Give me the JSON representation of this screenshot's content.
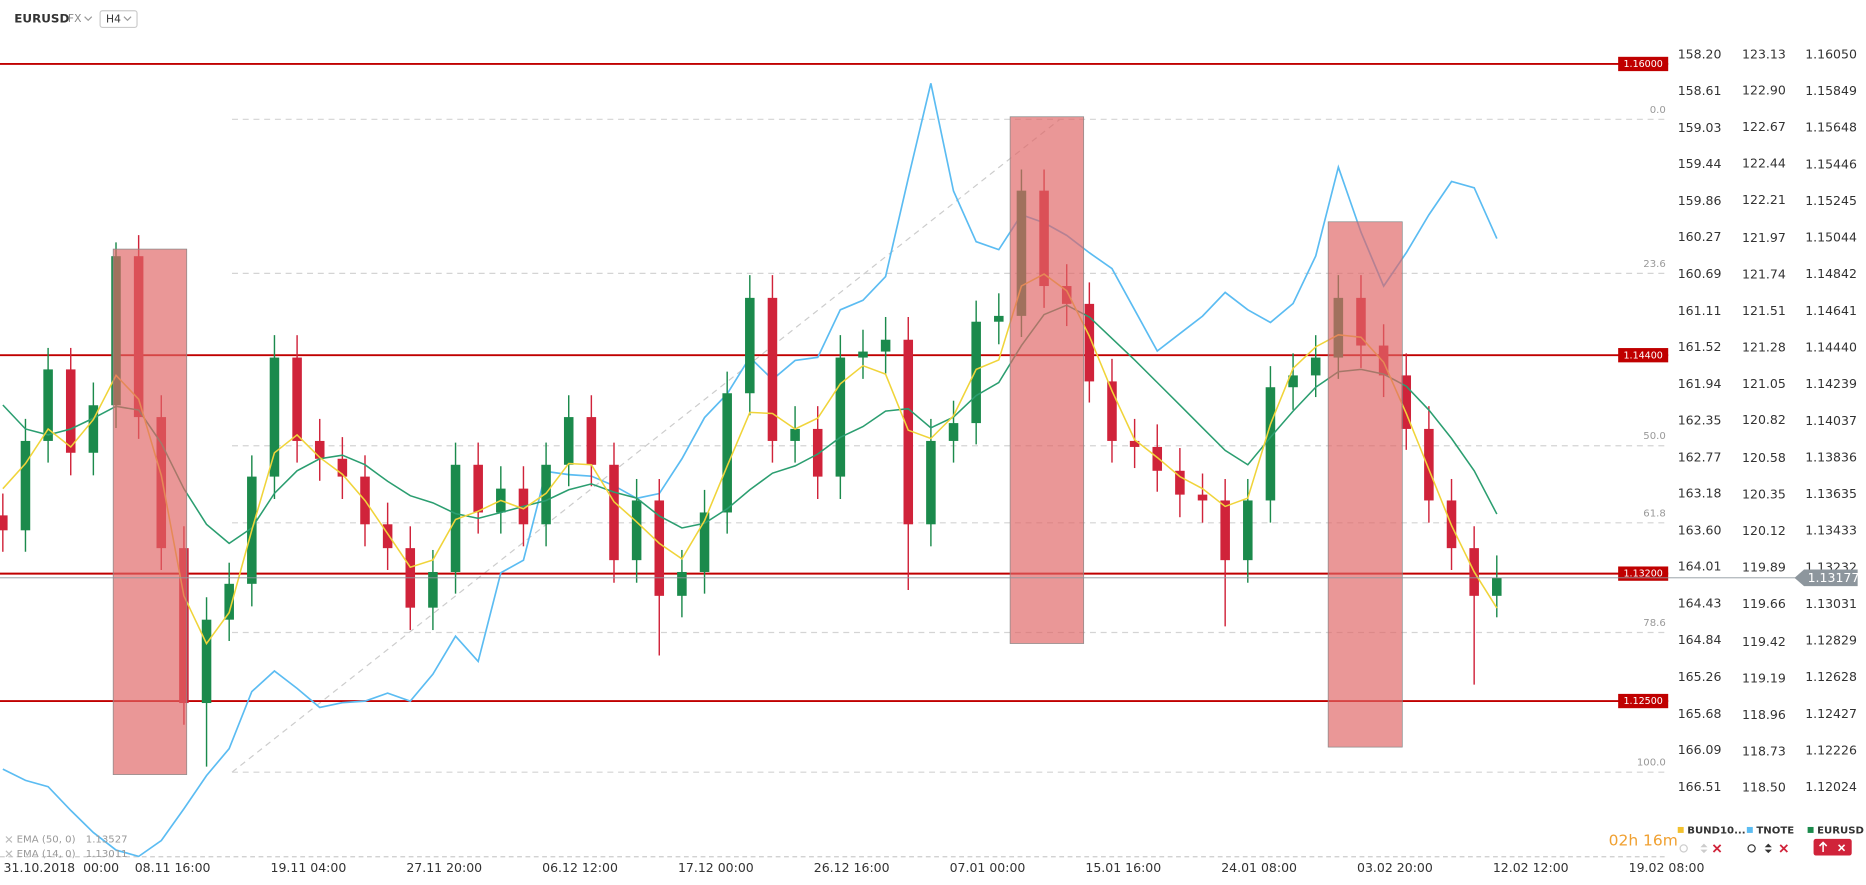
{
  "chart_data": {
    "type": "candlestick",
    "symbol": "EURUSD",
    "market": "FX",
    "timeframe": "H4",
    "x": [
      -6,
      -2,
      2,
      6,
      10,
      14,
      18,
      22,
      26,
      30,
      34,
      38,
      42,
      46,
      50,
      54,
      58,
      62,
      66,
      70,
      74,
      78,
      82,
      86,
      90,
      94,
      98,
      102,
      106,
      110,
      114,
      118,
      122,
      126,
      130,
      134,
      138,
      142,
      146,
      150,
      154,
      158,
      162,
      166,
      170,
      174,
      178,
      182,
      186,
      190,
      194,
      198,
      202,
      206,
      210,
      214,
      218,
      222,
      226,
      230,
      234,
      238,
      242,
      246,
      250,
      254,
      258
    ],
    "xlim": [
      -6.5,
      288.5
    ],
    "xticks": [
      {
        "value": 0,
        "label": "31.10.2018  00:00"
      },
      {
        "value": 24,
        "label": "08.11 16:00"
      },
      {
        "value": 48,
        "label": "19.11 04:00"
      },
      {
        "value": 72,
        "label": "27.11 20:00"
      },
      {
        "value": 96,
        "label": "06.12 12:00"
      },
      {
        "value": 120,
        "label": "17.12 00:00"
      },
      {
        "value": 144,
        "label": "26.12 16:00"
      },
      {
        "value": 168,
        "label": "07.01 00:00"
      },
      {
        "value": 192,
        "label": "15.01 16:00"
      },
      {
        "value": 216,
        "label": "24.01 08:00"
      },
      {
        "value": 240,
        "label": "03.02 20:00"
      },
      {
        "value": 264,
        "label": "12.02 12:00"
      },
      {
        "value": 288,
        "label": "19.02 08:00"
      }
    ],
    "ylim": [
      1.11638,
      1.16155
    ],
    "yticks": [
      {
        "value": 1.1605,
        "label": "1.16050"
      },
      1.15849,
      1.15648,
      1.15446,
      1.15245,
      1.15044,
      1.14842,
      1.14641,
      {
        "value": 1.1444,
        "label": "1.14440"
      },
      1.14239,
      1.14037,
      1.13836,
      1.13635,
      1.13433,
      1.13232,
      1.13031,
      1.12829,
      1.12628,
      1.12427,
      1.12226,
      1.12024
    ],
    "y2lim": [
      118.06,
      123.25
    ],
    "y2ticks": [
      123.13,
      {
        "value": 122.9,
        "label": "122.90"
      },
      122.67,
      122.44,
      122.21,
      121.97,
      121.74,
      121.51,
      121.28,
      121.05,
      120.82,
      120.58,
      120.35,
      120.12,
      119.89,
      119.66,
      119.42,
      119.19,
      118.96,
      118.73,
      {
        "value": 118.5,
        "label": "118.50"
      }
    ],
    "y3lim": [
      167.31,
      157.98
    ],
    "y3ticks": [
      {
        "value": 158.2,
        "label": "158.20"
      },
      158.61,
      159.03,
      159.44,
      159.86,
      160.27,
      160.69,
      161.11,
      161.52,
      161.94,
      162.35,
      162.77,
      163.18,
      {
        "value": 163.6,
        "label": "163.60"
      },
      164.01,
      164.43,
      164.84,
      165.26,
      165.68,
      166.09,
      166.51
    ],
    "y3_name": "BUND10...",
    "y3_color": "#f2c12e",
    "ohlc": {
      "name": "EURUSD",
      "up_color": "#1b8a4c",
      "down_color": "#d0233a",
      "open": [
        1.1352,
        1.13438,
        1.13929,
        1.14322,
        1.13864,
        1.14125,
        1.14944,
        1.1406,
        1.1334,
        1.12489,
        1.12947,
        1.13144,
        1.13733,
        1.14387,
        1.13929,
        1.13831,
        1.13733,
        1.13471,
        1.1334,
        1.13013,
        1.13209,
        1.13798,
        1.13536,
        1.13667,
        1.13471,
        1.13798,
        1.1406,
        1.13798,
        1.13274,
        1.13602,
        1.13078,
        1.13209,
        1.13536,
        1.14191,
        1.14715,
        1.13929,
        1.13995,
        1.13733,
        1.14387,
        1.1442,
        1.14485,
        1.13471,
        1.13929,
        1.14027,
        1.14584,
        1.14616,
        1.15304,
        1.1478,
        1.14682,
        1.14256,
        1.13929,
        1.13896,
        1.13765,
        1.13634,
        1.13602,
        1.13274,
        1.13602,
        1.14224,
        1.14289,
        1.14387,
        1.14715,
        1.14453,
        1.14289,
        1.13995,
        1.13602,
        1.1334,
        1.13078
      ],
      "high": [
        1.1364,
        1.1405,
        1.1444,
        1.1444,
        1.1425,
        1.1502,
        1.1506,
        1.1418,
        1.1346,
        1.1307,
        1.1326,
        1.1385,
        1.1451,
        1.1451,
        1.1405,
        1.1395,
        1.1385,
        1.1359,
        1.1346,
        1.1333,
        1.1392,
        1.1392,
        1.1379,
        1.1379,
        1.1392,
        1.1418,
        1.1418,
        1.1392,
        1.1372,
        1.1372,
        1.1333,
        1.1366,
        1.1431,
        1.1484,
        1.1484,
        1.1412,
        1.1412,
        1.1451,
        1.1454,
        1.1461,
        1.1461,
        1.1405,
        1.1415,
        1.147,
        1.1474,
        1.1542,
        1.1542,
        1.149,
        1.148,
        1.1438,
        1.1405,
        1.1402,
        1.1389,
        1.1375,
        1.1372,
        1.1372,
        1.1434,
        1.1441,
        1.1451,
        1.1484,
        1.1484,
        1.1457,
        1.1441,
        1.1412,
        1.1372,
        1.1346,
        1.133
      ],
      "low": [
        1.1332,
        1.1332,
        1.1381,
        1.1374,
        1.1374,
        1.14,
        1.1394,
        1.1322,
        1.1237,
        1.1214,
        1.1283,
        1.1302,
        1.1361,
        1.1381,
        1.1371,
        1.1361,
        1.1335,
        1.1322,
        1.1289,
        1.1289,
        1.1309,
        1.1342,
        1.1342,
        1.1335,
        1.1335,
        1.1368,
        1.1368,
        1.1315,
        1.1315,
        1.1275,
        1.1296,
        1.1309,
        1.1342,
        1.1407,
        1.1381,
        1.1381,
        1.1361,
        1.1361,
        1.1427,
        1.143,
        1.1311,
        1.1335,
        1.1381,
        1.1391,
        1.1446,
        1.145,
        1.1466,
        1.1456,
        1.1414,
        1.1381,
        1.1378,
        1.1365,
        1.1351,
        1.1348,
        1.1291,
        1.1315,
        1.1348,
        1.141,
        1.1417,
        1.1427,
        1.1433,
        1.1417,
        1.1388,
        1.1348,
        1.1322,
        1.1259,
        1.1296
      ],
      "close": [
        1.13438,
        1.13929,
        1.14322,
        1.13864,
        1.14125,
        1.14944,
        1.1406,
        1.1334,
        1.12489,
        1.12947,
        1.13144,
        1.13733,
        1.14387,
        1.13929,
        1.13831,
        1.13733,
        1.13471,
        1.1334,
        1.13013,
        1.13209,
        1.13798,
        1.13536,
        1.13667,
        1.13471,
        1.13798,
        1.1406,
        1.13798,
        1.13274,
        1.13602,
        1.13078,
        1.13209,
        1.13536,
        1.14191,
        1.14715,
        1.13929,
        1.13995,
        1.13733,
        1.14387,
        1.1442,
        1.14485,
        1.13471,
        1.13929,
        1.14027,
        1.14584,
        1.14616,
        1.15304,
        1.1478,
        1.14682,
        1.14256,
        1.13929,
        1.13896,
        1.13765,
        1.13634,
        1.13602,
        1.13274,
        1.13602,
        1.14224,
        1.14289,
        1.14387,
        1.14715,
        1.14453,
        1.14289,
        1.13995,
        1.13602,
        1.1334,
        1.13078,
        1.13177
      ]
    },
    "series": [
      {
        "name": "TNOTE",
        "axis": "y2",
        "color": "#5bbcf2",
        "values": [
          118.62,
          118.55,
          118.51,
          118.36,
          118.22,
          118.11,
          118.07,
          118.17,
          118.37,
          118.58,
          118.75,
          119.11,
          119.24,
          119.13,
          119.01,
          119.04,
          119.05,
          119.1,
          119.05,
          119.22,
          119.46,
          119.3,
          119.86,
          119.94,
          120.5,
          120.48,
          120.47,
          120.41,
          120.33,
          120.36,
          120.58,
          120.84,
          120.99,
          121.22,
          121.08,
          121.2,
          121.22,
          121.52,
          121.58,
          121.73,
          122.35,
          122.95,
          122.27,
          121.95,
          121.9,
          122.12,
          122.07,
          121.99,
          121.88,
          121.78,
          121.52,
          121.26,
          121.37,
          121.48,
          121.63,
          121.52,
          121.44,
          121.56,
          121.86,
          122.42,
          122.01,
          121.67,
          121.88,
          122.12,
          122.33,
          122.29,
          121.97
        ]
      },
      {
        "name": "EMA (50, 0)",
        "color": "#2b9e70",
        "values": [
          1.14126,
          1.13995,
          1.13962,
          1.13995,
          1.14054,
          1.14119,
          1.14099,
          1.13916,
          1.13667,
          1.13471,
          1.13366,
          1.13451,
          1.13641,
          1.13765,
          1.13831,
          1.13851,
          1.13798,
          1.13707,
          1.13628,
          1.13589,
          1.1353,
          1.13504,
          1.13536,
          1.13569,
          1.13602,
          1.13661,
          1.13693,
          1.13648,
          1.13615,
          1.13517,
          1.13451,
          1.13477,
          1.13556,
          1.13661,
          1.13752,
          1.13792,
          1.13857,
          1.13949,
          1.14008,
          1.14093,
          1.14106,
          1.14001,
          1.1406,
          1.14178,
          1.1425,
          1.14453,
          1.14623,
          1.14675,
          1.1461,
          1.14492,
          1.14374,
          1.1425,
          1.14126,
          1.14001,
          1.13877,
          1.13798,
          1.13949,
          1.14093,
          1.14224,
          1.14309,
          1.14322,
          1.14296,
          1.1423,
          1.14099,
          1.13942,
          1.13765,
          1.13527
        ]
      },
      {
        "name": "EMA (14, 0)",
        "color": "#f0d43a",
        "values": [
          1.13667,
          1.13805,
          1.13995,
          1.13896,
          1.14047,
          1.14289,
          1.14158,
          1.13739,
          1.13078,
          1.12816,
          1.12986,
          1.13438,
          1.13864,
          1.13962,
          1.13838,
          1.13746,
          1.13602,
          1.13419,
          1.13235,
          1.13275,
          1.13497,
          1.13543,
          1.13602,
          1.13556,
          1.13641,
          1.13805,
          1.13798,
          1.13595,
          1.13484,
          1.13366,
          1.13281,
          1.13491,
          1.13792,
          1.14086,
          1.1408,
          1.13995,
          1.14054,
          1.14243,
          1.14342,
          1.14296,
          1.13988,
          1.13942,
          1.14067,
          1.14322,
          1.14374,
          1.1478,
          1.14846,
          1.14754,
          1.14505,
          1.14204,
          1.13936,
          1.13838,
          1.13733,
          1.13667,
          1.13569,
          1.13615,
          1.14021,
          1.14328,
          1.14446,
          1.14512,
          1.14499,
          1.14361,
          1.1408,
          1.13772,
          1.13464,
          1.13209,
          1.13011
        ]
      }
    ],
    "levels": [
      {
        "value": 1.16,
        "label": "1.16000"
      },
      {
        "value": 1.144,
        "label": "1.14400"
      },
      {
        "value": 1.132,
        "label": "1.13200"
      },
      {
        "value": 1.125,
        "label": "1.12500"
      }
    ],
    "level_color": "#c00000",
    "last_price": 1.13177,
    "zones": [
      {
        "x": [
          13.5,
          26.5
        ],
        "y": [
          1.12096,
          1.14983
        ]
      },
      {
        "x": [
          172,
          185
        ],
        "y": [
          1.12816,
          1.1571
        ]
      },
      {
        "x": [
          228.2,
          241.3
        ],
        "y": [
          1.12247,
          1.15133
        ]
      }
    ],
    "zone_color": "#e06666",
    "fib": {
      "levels": [
        {
          "value": 0,
          "label": "0.0"
        },
        23.6,
        {
          "value": 50,
          "label": "50.0"
        },
        61.8,
        78.6,
        {
          "value": 100,
          "label": "100.0"
        }
      ],
      "from": {
        "x": 34.5,
        "y": 1.12109
      },
      "to": {
        "x": 180.8,
        "y": 1.15696
      }
    },
    "countdown": "02h 16m"
  }
}
